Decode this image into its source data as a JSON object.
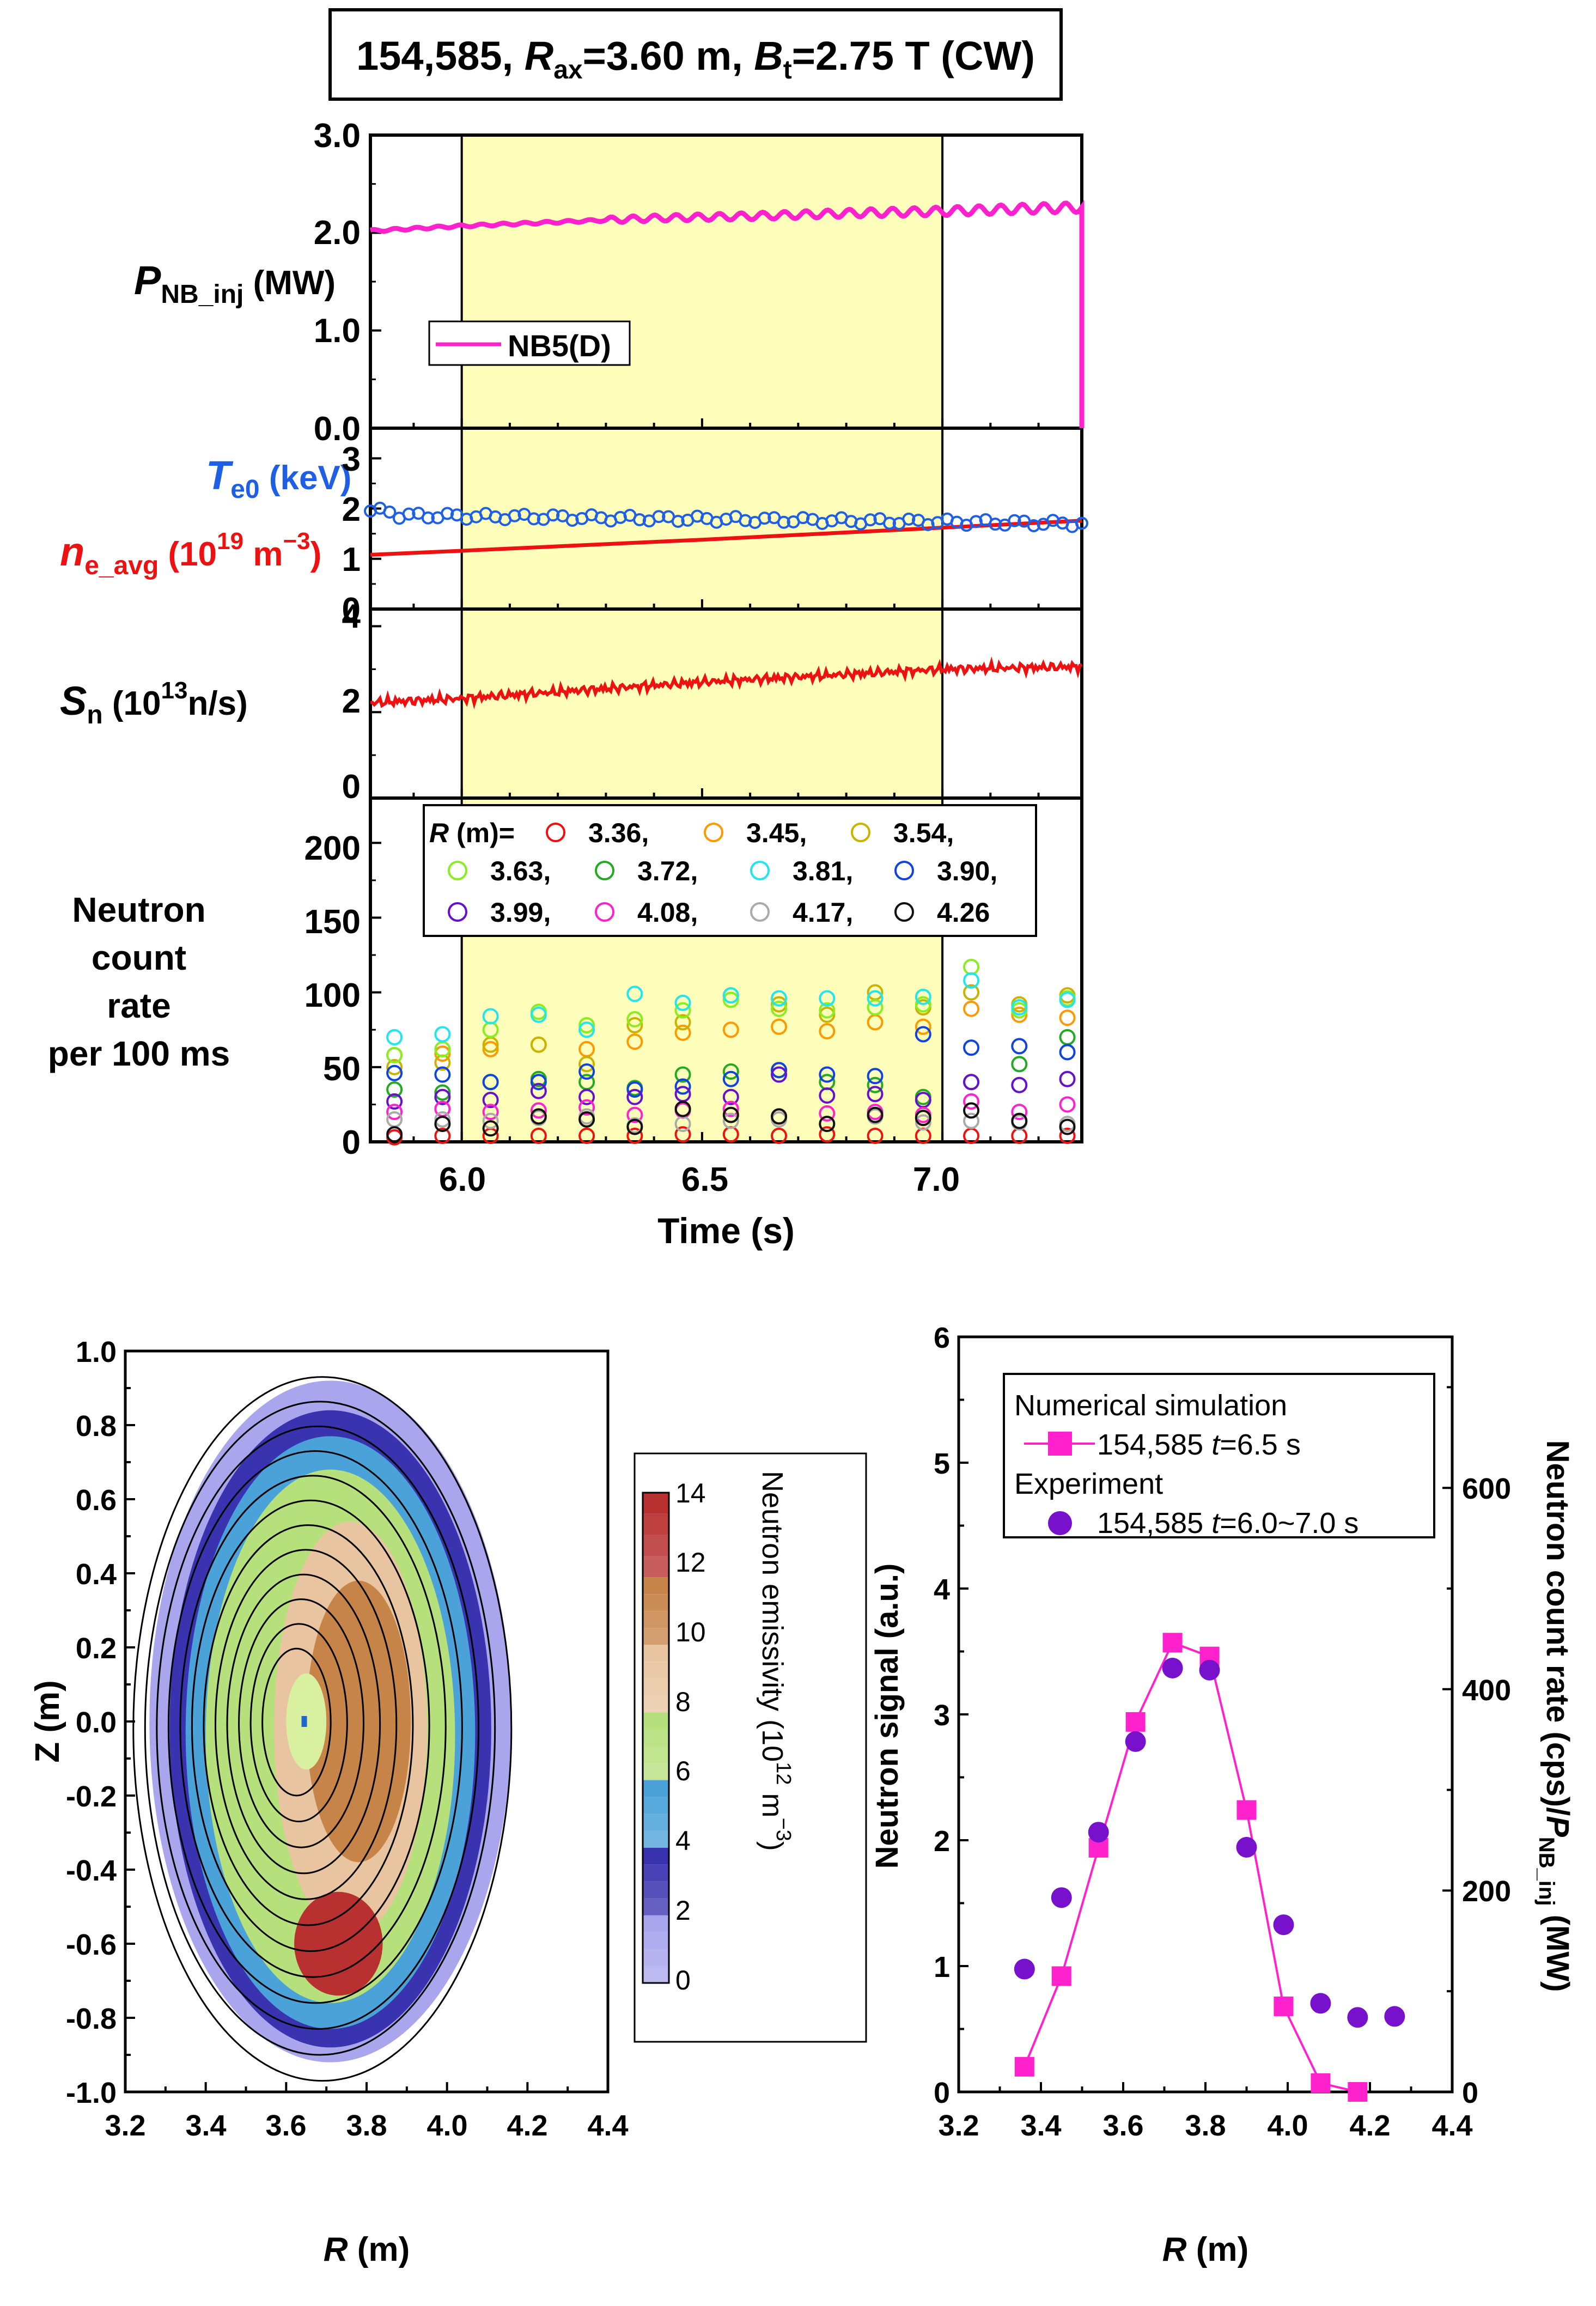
{
  "colors": {
    "pnb": "#ff22cc",
    "te": "#1f5fe6",
    "ne": "#ee1111",
    "sn": "#ee1111",
    "window": "#ffffbb",
    "sim": "#ff22cc",
    "exp": "#7711cc",
    "R3.36": "#ee1111",
    "R3.45": "#ff9900",
    "R3.54": "#c9b300",
    "R3.63": "#88ee22",
    "R3.72": "#22aa22",
    "R3.81": "#22e6ee",
    "R3.90": "#1144dd",
    "R3.99": "#6611cc",
    "R4.08": "#ff22cc",
    "R4.17": "#aaaaaa",
    "R4.26": "#111111"
  },
  "title": {
    "shot": "154,585, ",
    "rax_sym": "R",
    "rax_sub": "ax",
    "rax_val": "=3.60 m, ",
    "bt_sym": "B",
    "bt_sub": "t",
    "bt_val": "=2.75 T (CW)"
  },
  "panels": {
    "pnb": {
      "label_sym": "P",
      "label_sub": "NB_inj",
      "label_unit": " (MW)",
      "ticks": [
        "0.0",
        "1.0",
        "2.0",
        "3.0"
      ],
      "legend": "NB5(D)"
    },
    "te_ne": {
      "te_sym": "T",
      "te_sub": "e0",
      "te_unit": " (keV)",
      "ne_sym": "n",
      "ne_sub": "e_avg",
      "ne_unit1": " (10",
      "ne_exp": "19",
      "ne_unit2": " m",
      "ne_exp2": "−3",
      "ne_close": ")",
      "ticks": [
        "0",
        "1",
        "2",
        "3"
      ]
    },
    "sn": {
      "label_sym": "S",
      "label_sub": "n",
      "label_unit1": " (10",
      "label_exp": "13",
      "label_unit2": "n/s)",
      "ticks": [
        "0",
        "2",
        "4"
      ]
    },
    "counts": {
      "label_lines": [
        "Neutron",
        "count",
        "rate",
        "per 100 ms"
      ],
      "ticks": [
        "0",
        "50",
        "100",
        "150",
        "200"
      ],
      "legend_head_sym": "R",
      "legend_head_unit": " (m)=",
      "legend_items": [
        "3.36,",
        "3.45,",
        "3.54,",
        "3.63,",
        "3.72,",
        "3.81,",
        "3.90,",
        "3.99,",
        "4.08,",
        "4.17,",
        "4.26"
      ]
    },
    "time_ticks": [
      "6.0",
      "6.5",
      "7.0"
    ],
    "time_label": "Time (s)"
  },
  "emissivity_map": {
    "ylabel": "Z (m)",
    "xlabel_sym": "R",
    "xlabel_unit": " (m)",
    "xticks": [
      "3.2",
      "3.4",
      "3.6",
      "3.8",
      "4.0",
      "4.2",
      "4.4"
    ],
    "yticks": [
      "1.0",
      "0.8",
      "0.6",
      "0.4",
      "0.2",
      "0.0",
      "-0.2",
      "-0.4",
      "-0.6",
      "-0.8",
      "-1.0"
    ],
    "colorbar_ticks": [
      "14",
      "12",
      "10",
      "8",
      "6",
      "4",
      "2",
      "0"
    ],
    "colorbar_label1": "Neutron emissivity (10",
    "colorbar_exp1": "12",
    "colorbar_label2": " m",
    "colorbar_exp2": "−3",
    "colorbar_close": ")"
  },
  "chart_data": [
    {
      "type": "line",
      "title": "154,585, Rax=3.60 m, Bt=2.75 T (CW)",
      "xlabel": "Time (s)",
      "xlim": [
        5.81,
        7.29
      ],
      "shaded_window": [
        6.0,
        7.0
      ],
      "panels": [
        {
          "ylabel": "P_NB_inj (MW)",
          "ylim": [
            0,
            3
          ],
          "series": [
            {
              "name": "NB5(D)",
              "x": [
                5.81,
                6.0,
                6.2,
                6.4,
                6.6,
                6.8,
                7.0,
                7.2,
                7.29,
                7.29
              ],
              "y": [
                2.02,
                2.07,
                2.11,
                2.15,
                2.17,
                2.2,
                2.22,
                2.25,
                2.26,
                0
              ]
            }
          ]
        },
        {
          "ylabel": "T_e0 (keV) / n_e_avg (10^19 m^-3)",
          "ylim": [
            0,
            3.6
          ],
          "series": [
            {
              "name": "T_e0",
              "marker": "circle",
              "x_start": 5.81,
              "x_step": 0.02,
              "x_end": 7.29,
              "y_base": 1.87,
              "y_end": 1.7
            },
            {
              "name": "n_e_avg",
              "x": [
                5.81,
                6.0,
                6.5,
                7.0,
                7.29
              ],
              "y": [
                1.08,
                1.16,
                1.38,
                1.62,
                1.76
              ]
            }
          ]
        },
        {
          "ylabel": "S_n (10^13 n/s)",
          "ylim": [
            0,
            4.4
          ],
          "series": [
            {
              "name": "S_n",
              "x": [
                5.81,
                6.0,
                6.5,
                7.0,
                7.29
              ],
              "y": [
                2.22,
                2.32,
                2.7,
                3.0,
                3.06
              ]
            }
          ]
        },
        {
          "ylabel": "Neutron count rate per 100 ms",
          "ylim": [
            0,
            230
          ],
          "x": [
            5.86,
            5.96,
            6.06,
            6.16,
            6.26,
            6.36,
            6.46,
            6.56,
            6.66,
            6.76,
            6.86,
            6.96,
            7.06,
            7.16,
            7.26
          ],
          "series": [
            {
              "name": "3.36",
              "values": [
                3,
                4,
                4,
                4,
                4,
                4,
                5,
                5,
                4,
                5,
                4,
                4,
                4,
                4,
                4
              ]
            },
            {
              "name": "3.45",
              "values": [
                58,
                59,
                62,
                65,
                62,
                67,
                73,
                75,
                77,
                74,
                80,
                77,
                89,
                85,
                83
              ]
            },
            {
              "name": "3.54",
              "values": [
                50,
                53,
                65,
                65,
                52,
                78,
                80,
                98,
                92,
                85,
                100,
                90,
                100,
                92,
                98
              ]
            },
            {
              "name": "3.63",
              "values": [
                58,
                62,
                75,
                87,
                78,
                82,
                88,
                95,
                89,
                88,
                90,
                92,
                117,
                88,
                96
              ]
            },
            {
              "name": "3.72",
              "values": [
                35,
                33,
                40,
                42,
                40,
                36,
                45,
                47,
                48,
                40,
                38,
                30,
                40,
                52,
                70
              ]
            },
            {
              "name": "3.81",
              "values": [
                70,
                72,
                84,
                85,
                75,
                99,
                93,
                98,
                96,
                96,
                96,
                97,
                108,
                90,
                95
              ]
            },
            {
              "name": "3.90",
              "values": [
                46,
                45,
                40,
                40,
                47,
                35,
                37,
                42,
                48,
                45,
                44,
                72,
                63,
                64,
                60
              ]
            },
            {
              "name": "3.99",
              "values": [
                27,
                30,
                28,
                34,
                30,
                30,
                32,
                30,
                45,
                31,
                32,
                28,
                40,
                38,
                42
              ]
            },
            {
              "name": "4.08",
              "values": [
                20,
                22,
                20,
                21,
                23,
                18,
                21,
                22,
                17,
                19,
                20,
                18,
                27,
                20,
                25
              ]
            },
            {
              "name": "4.17",
              "values": [
                15,
                15,
                14,
                16,
                17,
                11,
                12,
                14,
                15,
                12,
                17,
                13,
                14,
                13,
                12
              ]
            },
            {
              "name": "4.26",
              "values": [
                5,
                12,
                9,
                17,
                15,
                10,
                22,
                18,
                17,
                12,
                18,
                16,
                21,
                14,
                10
              ]
            }
          ]
        }
      ]
    },
    {
      "type": "heatmap",
      "title": "",
      "xlabel": "R (m)",
      "ylabel": "Z (m)",
      "xlim": [
        3.2,
        4.4
      ],
      "ylim": [
        -1.0,
        1.0
      ],
      "colorbar": {
        "label": "Neutron emissivity (10^12 m^-3)",
        "range": [
          0,
          14.5
        ],
        "levels": [
          {
            "from": 0,
            "to": 2.0,
            "color": "#aaa6ee"
          },
          {
            "from": 2.0,
            "to": 4.0,
            "color": "#3a33b0"
          },
          {
            "from": 4.0,
            "to": 6.0,
            "color": "#4aa2d8"
          },
          {
            "from": 6.0,
            "to": 8.0,
            "color": "#b6e07c"
          },
          {
            "from": 8.0,
            "to": 10.0,
            "color": "#e8c4a0"
          },
          {
            "from": 10.0,
            "to": 12.0,
            "color": "#c78448"
          },
          {
            "from": 12.0,
            "to": 14.5,
            "color": "#b83030"
          }
        ]
      },
      "flux_surfaces": {
        "center_r": 3.65,
        "center_z": 0.0,
        "count": 12
      },
      "peak_r": 3.73,
      "peak_z": -0.6
    },
    {
      "type": "scatter",
      "title": "",
      "xlabel": "R (m)",
      "ylabel": "Neutron signal (a.u.)",
      "ylabel_right": "Neutron count rate (cps)/P_NB_inj (MW)",
      "xlim": [
        3.2,
        4.4
      ],
      "ylim": [
        0,
        6
      ],
      "ylim_right": [
        0,
        750
      ],
      "series": [
        {
          "name": "Numerical simulation 154,585 t=6.5 s",
          "marker": "square",
          "line": true,
          "x": [
            3.36,
            3.45,
            3.54,
            3.63,
            3.72,
            3.81,
            3.9,
            3.99,
            4.08,
            4.17
          ],
          "y": [
            0.2,
            0.92,
            1.94,
            2.94,
            3.57,
            3.46,
            2.24,
            0.68,
            0.07,
            0.0
          ]
        },
        {
          "name": "Experiment 154,585 t=6.0~7.0 s",
          "marker": "circle",
          "axis": "right",
          "x": [
            3.36,
            3.45,
            3.54,
            3.63,
            3.72,
            3.81,
            3.9,
            3.99,
            4.08,
            4.17,
            4.26
          ],
          "y": [
            122,
            193,
            258,
            348,
            421,
            419,
            243,
            166,
            88,
            74,
            75
          ]
        }
      ]
    }
  ],
  "profile": {
    "ylabel": "Neutron signal (a.u.)",
    "ylabel_right_1": "Neutron count rate (cps)/",
    "ylabel_right_sym": "P",
    "ylabel_right_sub": "NB_inj",
    "ylabel_right_2": " (MW)",
    "xticks": [
      "3.2",
      "3.4",
      "3.6",
      "3.8",
      "4.0",
      "4.2",
      "4.4"
    ],
    "yticks": [
      "0",
      "1",
      "2",
      "3",
      "4",
      "5",
      "6"
    ],
    "yticks_right": [
      "0",
      "200",
      "400",
      "600"
    ],
    "xlabel_sym": "R",
    "xlabel_unit": " (m)",
    "legend": {
      "sim_head": "Numerical simulation",
      "sim_item_shot": "154,585 ",
      "sim_item_t": "t",
      "sim_item_val": "=6.5 s",
      "exp_head": "Experiment",
      "exp_item_shot": "154,585 ",
      "exp_item_t": "t",
      "exp_item_val": "=6.0~7.0 s"
    }
  }
}
